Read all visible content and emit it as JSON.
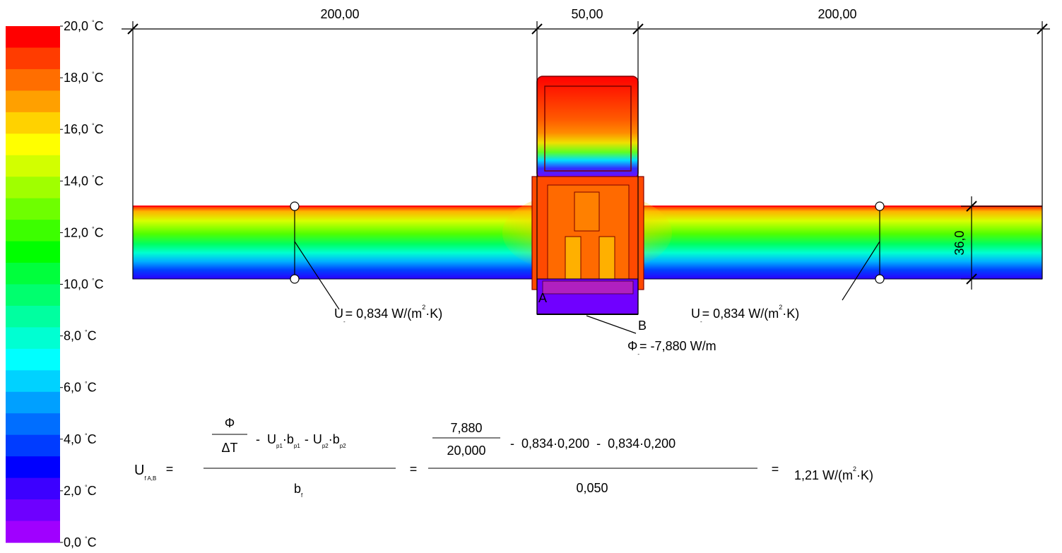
{
  "legend": {
    "colors": [
      "#ff0000",
      "#ff3c00",
      "#ff6e00",
      "#ffa000",
      "#ffd200",
      "#ffff00",
      "#d2ff00",
      "#a0ff00",
      "#6eff00",
      "#3cff00",
      "#00ff00",
      "#00ff3c",
      "#00ff6e",
      "#00ffa0",
      "#00ffd2",
      "#00ffff",
      "#00d2ff",
      "#00a0ff",
      "#006eff",
      "#003cff",
      "#0000ff",
      "#3c00ff",
      "#6e00ff",
      "#a000ff"
    ],
    "ticks": [
      {
        "value": "20,0",
        "unit": "C"
      },
      {
        "value": "18,0",
        "unit": "C"
      },
      {
        "value": "16,0",
        "unit": "C"
      },
      {
        "value": "14,0",
        "unit": "C"
      },
      {
        "value": "12,0",
        "unit": "C"
      },
      {
        "value": "10,0",
        "unit": "C"
      },
      {
        "value": "8,0",
        "unit": "C"
      },
      {
        "value": "6,0",
        "unit": "C"
      },
      {
        "value": "4,0",
        "unit": "C"
      },
      {
        "value": "2,0",
        "unit": "C"
      },
      {
        "value": "0,0",
        "unit": "C"
      }
    ],
    "degree_mark": "°"
  },
  "dimensions": {
    "left_width": "200,00",
    "mid_width": "50,00",
    "right_width": "200,00",
    "thickness": "36,0"
  },
  "points": {
    "a": "A",
    "b": "B"
  },
  "annotations": {
    "u_left": {
      "prefix": "U",
      "sub": "-",
      "text": "= 0,834 W/(m",
      "exp": "2",
      "suffix": "·K)"
    },
    "u_right": {
      "prefix": "U",
      "sub": "-",
      "text": "= 0,834 W/(m",
      "exp": "2",
      "suffix": "·K)"
    },
    "phi": {
      "symbol": "Φ",
      "sub": "-",
      "text": "= -7,880 W/m"
    }
  },
  "formula": {
    "lhs": "U",
    "lhs_sub": "f A,B",
    "eq": "=",
    "sym_num_top": "Φ",
    "sym_num_bottom": "ΔT",
    "sym_terms": {
      "minus": "-",
      "up1": "U",
      "up1_sub": "p1",
      "bp1": "·b",
      "bp1_sub": "p1",
      "up2": "U",
      "up2_sub": "p2",
      "bp2": "·b",
      "bp2_sub": "p2"
    },
    "sym_den": "b",
    "sym_den_sub": "f",
    "num_top": "7,880",
    "num_bottom": "20,000",
    "num_terms": "-  0,834·0,200  -  0,834·0,200",
    "num_den": "0,050",
    "result": "1,21 W/(m",
    "result_exp": "2",
    "result_suffix": "·K)"
  }
}
